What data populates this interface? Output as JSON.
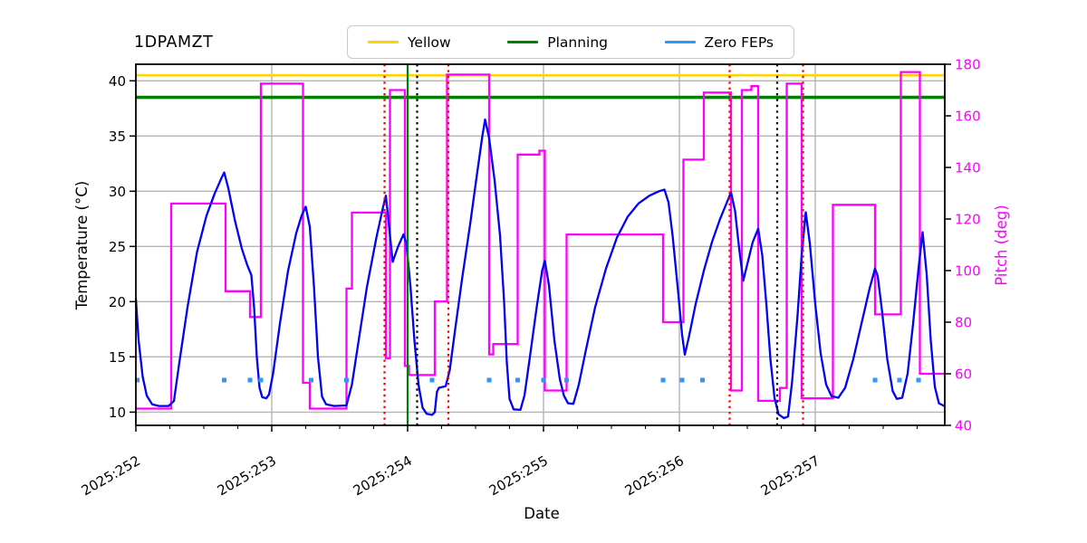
{
  "title": "1DPAMZT",
  "legend": {
    "items": [
      {
        "label": "Yellow",
        "color": "#ffd400"
      },
      {
        "label": "Planning",
        "color": "#008000"
      },
      {
        "label": "Zero FEPs",
        "color": "#2e96ff"
      }
    ]
  },
  "chart_data": {
    "type": "line",
    "title": "1DPAMZT",
    "xlabel": "Date",
    "ylabel_left": "Temperature (°C)",
    "ylabel_right": "Pitch (deg)",
    "x_ticks": [
      "2025:252",
      "2025:253",
      "2025:254",
      "2025:255",
      "2025:256",
      "2025:257"
    ],
    "x_tick_days": [
      252,
      253,
      254,
      255,
      256,
      257
    ],
    "x_minor_tick_step": 0.25,
    "xlim": [
      252.0,
      257.95
    ],
    "ylim_left": [
      8.8,
      41.5
    ],
    "ylim_right": [
      40,
      180
    ],
    "y_ticks_left": [
      10,
      15,
      20,
      25,
      30,
      35,
      40
    ],
    "y_ticks_right": [
      40,
      60,
      80,
      100,
      120,
      140,
      160,
      180
    ],
    "grid": true,
    "legend_position": "top center",
    "limits": {
      "yellow": 40.5,
      "yellow_color": "#ffd400",
      "planning": 38.5,
      "planning_color": "#008000"
    },
    "series": {
      "temperature": {
        "name": "1DPAMZT temperature",
        "color": "#0000f5",
        "points": [
          [
            252.0,
            20.3
          ],
          [
            252.02,
            16.5
          ],
          [
            252.05,
            13.2
          ],
          [
            252.08,
            11.5
          ],
          [
            252.12,
            10.7
          ],
          [
            252.17,
            10.55
          ],
          [
            252.24,
            10.55
          ],
          [
            252.28,
            11.0
          ],
          [
            252.32,
            14.5
          ],
          [
            252.38,
            19.5
          ],
          [
            252.45,
            24.5
          ],
          [
            252.52,
            27.8
          ],
          [
            252.58,
            29.8
          ],
          [
            252.63,
            31.2
          ],
          [
            252.65,
            31.7
          ],
          [
            252.68,
            30.3
          ],
          [
            252.73,
            27.3
          ],
          [
            252.78,
            24.8
          ],
          [
            252.82,
            23.3
          ],
          [
            252.85,
            22.4
          ],
          [
            252.87,
            19.5
          ],
          [
            252.89,
            15.0
          ],
          [
            252.91,
            12.2
          ],
          [
            252.93,
            11.35
          ],
          [
            252.96,
            11.25
          ],
          [
            252.98,
            11.6
          ],
          [
            253.01,
            13.5
          ],
          [
            253.06,
            18.0
          ],
          [
            253.12,
            22.8
          ],
          [
            253.18,
            26.2
          ],
          [
            253.22,
            27.8
          ],
          [
            253.25,
            28.6
          ],
          [
            253.28,
            26.8
          ],
          [
            253.31,
            21.5
          ],
          [
            253.34,
            15.0
          ],
          [
            253.37,
            11.4
          ],
          [
            253.4,
            10.7
          ],
          [
            253.46,
            10.55
          ],
          [
            253.55,
            10.6
          ],
          [
            253.59,
            12.5
          ],
          [
            253.64,
            16.5
          ],
          [
            253.7,
            21.3
          ],
          [
            253.77,
            25.8
          ],
          [
            253.82,
            28.6
          ],
          [
            253.84,
            29.6
          ],
          [
            253.86,
            27.2
          ],
          [
            253.89,
            23.6
          ],
          [
            253.93,
            25.0
          ],
          [
            253.97,
            26.1
          ],
          [
            253.99,
            25.3
          ],
          [
            254.02,
            21.5
          ],
          [
            254.05,
            16.5
          ],
          [
            254.08,
            12.5
          ],
          [
            254.11,
            10.4
          ],
          [
            254.14,
            9.85
          ],
          [
            254.18,
            9.75
          ],
          [
            254.2,
            10.0
          ],
          [
            254.215,
            11.8
          ],
          [
            254.23,
            12.2
          ],
          [
            254.28,
            12.35
          ],
          [
            254.31,
            13.8
          ],
          [
            254.35,
            17.5
          ],
          [
            254.4,
            22.0
          ],
          [
            254.46,
            27.0
          ],
          [
            254.51,
            31.5
          ],
          [
            254.55,
            35.0
          ],
          [
            254.57,
            36.5
          ],
          [
            254.6,
            34.8
          ],
          [
            254.64,
            31.0
          ],
          [
            254.68,
            26.0
          ],
          [
            254.71,
            20.0
          ],
          [
            254.73,
            14.5
          ],
          [
            254.75,
            11.2
          ],
          [
            254.78,
            10.25
          ],
          [
            254.83,
            10.2
          ],
          [
            254.86,
            11.5
          ],
          [
            254.9,
            15.0
          ],
          [
            254.95,
            19.5
          ],
          [
            254.99,
            22.8
          ],
          [
            255.01,
            23.7
          ],
          [
            255.04,
            21.5
          ],
          [
            255.08,
            16.5
          ],
          [
            255.12,
            13.0
          ],
          [
            255.15,
            11.5
          ],
          [
            255.18,
            10.8
          ],
          [
            255.22,
            10.75
          ],
          [
            255.26,
            12.5
          ],
          [
            255.31,
            15.5
          ],
          [
            255.38,
            19.5
          ],
          [
            255.46,
            23.0
          ],
          [
            255.54,
            25.8
          ],
          [
            255.62,
            27.7
          ],
          [
            255.7,
            28.9
          ],
          [
            255.78,
            29.6
          ],
          [
            255.85,
            30.0
          ],
          [
            255.89,
            30.15
          ],
          [
            255.92,
            29.0
          ],
          [
            255.95,
            26.0
          ],
          [
            255.99,
            21.0
          ],
          [
            256.02,
            17.0
          ],
          [
            256.04,
            15.2
          ],
          [
            256.07,
            16.8
          ],
          [
            256.12,
            19.8
          ],
          [
            256.18,
            22.8
          ],
          [
            256.24,
            25.4
          ],
          [
            256.3,
            27.5
          ],
          [
            256.35,
            29.0
          ],
          [
            256.38,
            29.9
          ],
          [
            256.41,
            28.2
          ],
          [
            256.44,
            24.8
          ],
          [
            256.47,
            21.9
          ],
          [
            256.5,
            23.4
          ],
          [
            256.54,
            25.4
          ],
          [
            256.58,
            26.6
          ],
          [
            256.61,
            24.2
          ],
          [
            256.64,
            19.8
          ],
          [
            256.67,
            14.8
          ],
          [
            256.7,
            11.3
          ],
          [
            256.73,
            9.8
          ],
          [
            256.77,
            9.45
          ],
          [
            256.8,
            9.6
          ],
          [
            256.83,
            12.8
          ],
          [
            256.87,
            18.8
          ],
          [
            256.9,
            24.2
          ],
          [
            256.93,
            28.1
          ],
          [
            256.96,
            25.3
          ],
          [
            257.0,
            19.8
          ],
          [
            257.04,
            15.3
          ],
          [
            257.08,
            12.5
          ],
          [
            257.12,
            11.45
          ],
          [
            257.17,
            11.3
          ],
          [
            257.22,
            12.2
          ],
          [
            257.28,
            14.8
          ],
          [
            257.34,
            18.0
          ],
          [
            257.4,
            21.2
          ],
          [
            257.44,
            23.0
          ],
          [
            257.46,
            22.3
          ],
          [
            257.49,
            19.3
          ],
          [
            257.53,
            14.8
          ],
          [
            257.57,
            11.9
          ],
          [
            257.6,
            11.2
          ],
          [
            257.64,
            11.3
          ],
          [
            257.68,
            13.5
          ],
          [
            257.72,
            18.0
          ],
          [
            257.76,
            23.0
          ],
          [
            257.79,
            26.3
          ],
          [
            257.82,
            22.5
          ],
          [
            257.85,
            16.5
          ],
          [
            257.88,
            12.3
          ],
          [
            257.91,
            10.8
          ],
          [
            257.95,
            10.55
          ]
        ]
      },
      "pitch": {
        "name": "Pitch",
        "color": "#ff00ff",
        "steps": [
          [
            252.0,
            252.26,
            46.5
          ],
          [
            252.26,
            252.66,
            126
          ],
          [
            252.66,
            252.84,
            92
          ],
          [
            252.84,
            252.92,
            82
          ],
          [
            252.92,
            253.23,
            172.5
          ],
          [
            253.23,
            253.28,
            56.5
          ],
          [
            253.28,
            253.55,
            46.5
          ],
          [
            253.55,
            253.59,
            93
          ],
          [
            253.59,
            253.84,
            122.5
          ],
          [
            253.84,
            253.87,
            66
          ],
          [
            253.87,
            253.98,
            170
          ],
          [
            253.98,
            254.01,
            63
          ],
          [
            254.01,
            254.2,
            59.5
          ],
          [
            254.2,
            254.29,
            88
          ],
          [
            254.29,
            254.6,
            176
          ],
          [
            254.6,
            254.63,
            67.5
          ],
          [
            254.63,
            254.81,
            71.5
          ],
          [
            254.81,
            254.97,
            145
          ],
          [
            254.97,
            255.01,
            146.5
          ],
          [
            255.01,
            255.17,
            53.5
          ],
          [
            255.17,
            255.88,
            114
          ],
          [
            255.88,
            256.03,
            80
          ],
          [
            256.03,
            256.18,
            143
          ],
          [
            256.18,
            256.38,
            169
          ],
          [
            256.38,
            256.46,
            53.5
          ],
          [
            256.46,
            256.53,
            170
          ],
          [
            256.53,
            256.58,
            171.5
          ],
          [
            256.58,
            256.74,
            49.5
          ],
          [
            256.74,
            256.79,
            54.5
          ],
          [
            256.79,
            256.9,
            172.5
          ],
          [
            256.9,
            257.13,
            50.5
          ],
          [
            257.13,
            257.44,
            125.5
          ],
          [
            257.44,
            257.63,
            83
          ],
          [
            257.63,
            257.77,
            177
          ],
          [
            257.77,
            257.95,
            60
          ]
        ]
      },
      "zero_feps": {
        "name": "Zero FEPs",
        "color": "#2e96ff",
        "marker_temp": 12.9,
        "days": [
          252.01,
          252.65,
          252.84,
          252.92,
          253.29,
          253.55,
          254.18,
          254.6,
          254.81,
          255.0,
          255.17,
          255.88,
          256.02,
          256.17,
          257.44,
          257.62,
          257.76
        ]
      }
    },
    "vlines": [
      {
        "day": 253.83,
        "color": "#ff0000",
        "style": "dotted"
      },
      {
        "day": 254.0,
        "color": "#008000",
        "style": "solid"
      },
      {
        "day": 254.07,
        "color": "#000000",
        "style": "dotted"
      },
      {
        "day": 254.3,
        "color": "#ff0000",
        "style": "dotted"
      },
      {
        "day": 256.37,
        "color": "#ff0000",
        "style": "dotted"
      },
      {
        "day": 256.72,
        "color": "#000000",
        "style": "dotted"
      },
      {
        "day": 256.91,
        "color": "#ff0000",
        "style": "dotted"
      }
    ]
  }
}
